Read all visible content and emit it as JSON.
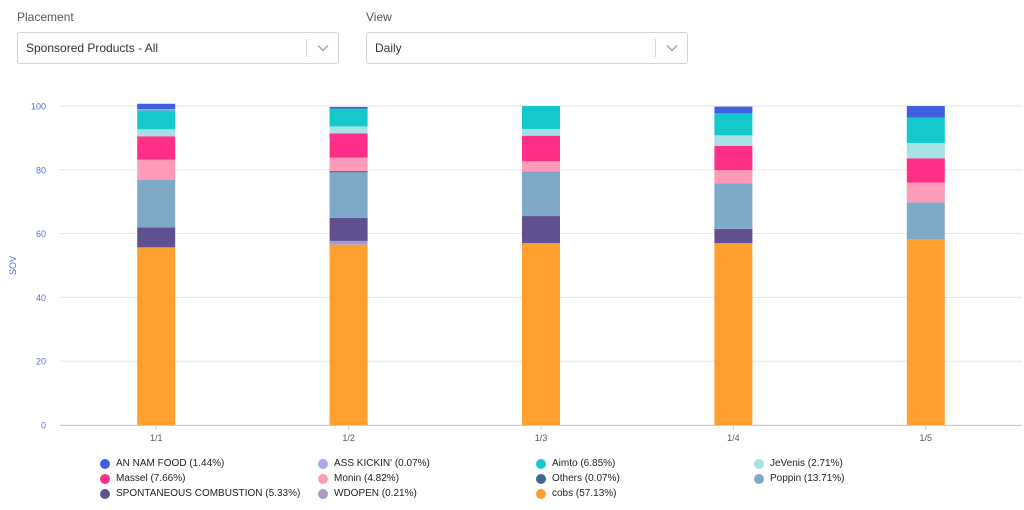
{
  "filters": {
    "placement": {
      "label": "Placement",
      "value": "Sponsored Products - All"
    },
    "view": {
      "label": "View",
      "value": "Daily"
    }
  },
  "chart_data": {
    "type": "bar",
    "stacked": true,
    "ylabel": "SOV",
    "xlabel": "",
    "ylim": [
      0,
      100
    ],
    "yticks": [
      "0",
      "20",
      "40",
      "60",
      "80",
      "100"
    ],
    "categories": [
      "1/1",
      "1/2",
      "1/3",
      "1/4",
      "1/5"
    ],
    "grid": true,
    "legend_position": "bottom",
    "series": [
      {
        "name": "cobs",
        "legend_label": "cobs (57.13%)",
        "color": "#ff9f2e",
        "values": [
          55.7,
          56.5,
          57.0,
          57.0,
          58.3
        ]
      },
      {
        "name": "WDOPEN",
        "legend_label": "WDOPEN (0.21%)",
        "color": "#a99cc7",
        "values": [
          0,
          1.2,
          0,
          0,
          0
        ]
      },
      {
        "name": "SPONTANEOUS COMBUSTION",
        "legend_label": "SPONTANEOUS COMBUSTION (5.33%)",
        "color": "#61508f",
        "values": [
          6.2,
          7.2,
          8.5,
          4.5,
          0
        ]
      },
      {
        "name": "Poppin",
        "legend_label": "Poppin (13.71%)",
        "color": "#7eaac7",
        "values": [
          14.9,
          14.3,
          14.0,
          14.3,
          11.5
        ]
      },
      {
        "name": "Others",
        "legend_label": "Others (0.07%)",
        "color": "#3b6a8c",
        "values": [
          0,
          0.4,
          0,
          0,
          0
        ]
      },
      {
        "name": "Monin",
        "legend_label": "Monin (4.82%)",
        "color": "#ff9ab8",
        "values": [
          6.4,
          4.2,
          3.2,
          4.1,
          6.2
        ]
      },
      {
        "name": "Massel",
        "legend_label": "Massel (7.66%)",
        "color": "#ff2e86",
        "values": [
          7.3,
          7.6,
          8.0,
          7.6,
          7.6
        ]
      },
      {
        "name": "JeVenis",
        "legend_label": "JeVenis (2.71%)",
        "color": "#a6e2e3",
        "values": [
          2.2,
          2.2,
          2.1,
          3.3,
          4.8
        ]
      },
      {
        "name": "Aimto",
        "legend_label": "Aimto (6.85%)",
        "color": "#14c8cc",
        "values": [
          5.9,
          5.6,
          7.2,
          6.9,
          8.0
        ]
      },
      {
        "name": "ASS KICKIN'",
        "legend_label": "ASS KICKIN' (0.07%)",
        "color": "#a8abe7",
        "values": [
          0.4,
          0,
          0,
          0,
          0
        ]
      },
      {
        "name": "AN NAM FOOD",
        "legend_label": "AN NAM FOOD (1.44%)",
        "color": "#3f5fe0",
        "values": [
          1.7,
          0.5,
          0,
          2.1,
          3.6
        ]
      }
    ],
    "legend_order": [
      "AN NAM FOOD",
      "ASS KICKIN'",
      "Aimto",
      "JeVenis",
      "Massel",
      "Monin",
      "Others",
      "Poppin",
      "SPONTANEOUS COMBUSTION",
      "WDOPEN",
      "cobs"
    ]
  }
}
